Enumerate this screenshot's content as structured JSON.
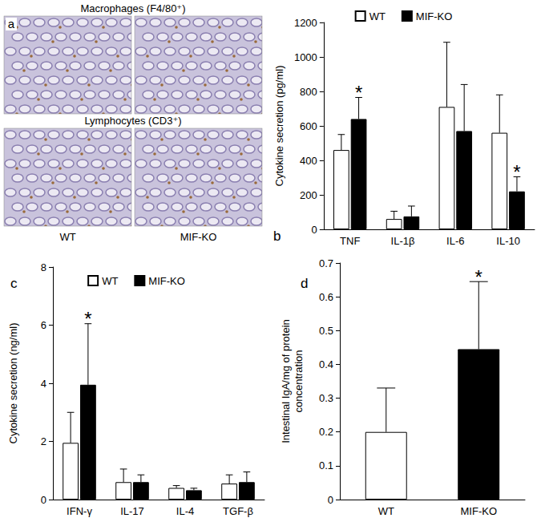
{
  "micrograph": {
    "panel": "a",
    "rows": [
      "Macrophages (F4/80⁺)",
      "Lymphocytes (CD3⁺)"
    ],
    "columns": [
      "WT",
      "MIF-KO"
    ]
  },
  "chart_data": [
    {
      "type": "bar",
      "title": "b",
      "categories": [
        "TNF",
        "IL-1β",
        "IL-6",
        "IL-10"
      ],
      "y_label": "Cytokine secretion (pg/ml)",
      "series": [
        {
          "name": "WT",
          "color": "#ffffff",
          "values": [
            460,
            60,
            710,
            560
          ],
          "errors": [
            90,
            45,
            375,
            220
          ]
        },
        {
          "name": "MIF-KO",
          "color": "#000000",
          "values": [
            640,
            75,
            570,
            220
          ],
          "errors": [
            125,
            60,
            270,
            85
          ]
        }
      ],
      "ylim": [
        0,
        1200
      ],
      "yticks": [
        0,
        200,
        400,
        600,
        800,
        1000,
        1200
      ],
      "grid": false,
      "legend": "top",
      "annotations": [
        {
          "text": "*",
          "category": "TNF",
          "series": "MIF-KO"
        },
        {
          "text": "*",
          "category": "IL-10",
          "series": "MIF-KO"
        }
      ]
    },
    {
      "type": "bar",
      "title": "c",
      "categories": [
        "IFN-γ",
        "IL-17",
        "IL-4",
        "TGF-β"
      ],
      "y_label": "Cytokine secretion (ng/ml)",
      "series": [
        {
          "name": "WT",
          "color": "#ffffff",
          "values": [
            1.95,
            0.6,
            0.4,
            0.55
          ],
          "errors": [
            1.05,
            0.45,
            0.08,
            0.3
          ]
        },
        {
          "name": "MIF-KO",
          "color": "#000000",
          "values": [
            3.95,
            0.6,
            0.32,
            0.6
          ],
          "errors": [
            2.1,
            0.25,
            0.07,
            0.35
          ]
        }
      ],
      "ylim": [
        0,
        8
      ],
      "yticks": [
        0,
        2,
        4,
        6,
        8
      ],
      "grid": false,
      "legend": "top",
      "annotations": [
        {
          "text": "*",
          "category": "IFN-γ",
          "series": "MIF-KO"
        }
      ]
    },
    {
      "type": "bar",
      "title": "d",
      "categories": [
        "WT",
        "MIF-KO"
      ],
      "y_label": "Intestinal IgA/mg of protein\nconcentration",
      "values": [
        0.2,
        0.445
      ],
      "errors": [
        0.13,
        0.2
      ],
      "colors": [
        "#ffffff",
        "#000000"
      ],
      "ylim": [
        0,
        0.7
      ],
      "yticks": [
        0,
        0.1,
        0.2,
        0.3,
        0.4,
        0.5,
        0.6,
        0.7
      ],
      "grid": false,
      "annotations": [
        {
          "text": "*",
          "category": "MIF-KO"
        }
      ]
    }
  ]
}
